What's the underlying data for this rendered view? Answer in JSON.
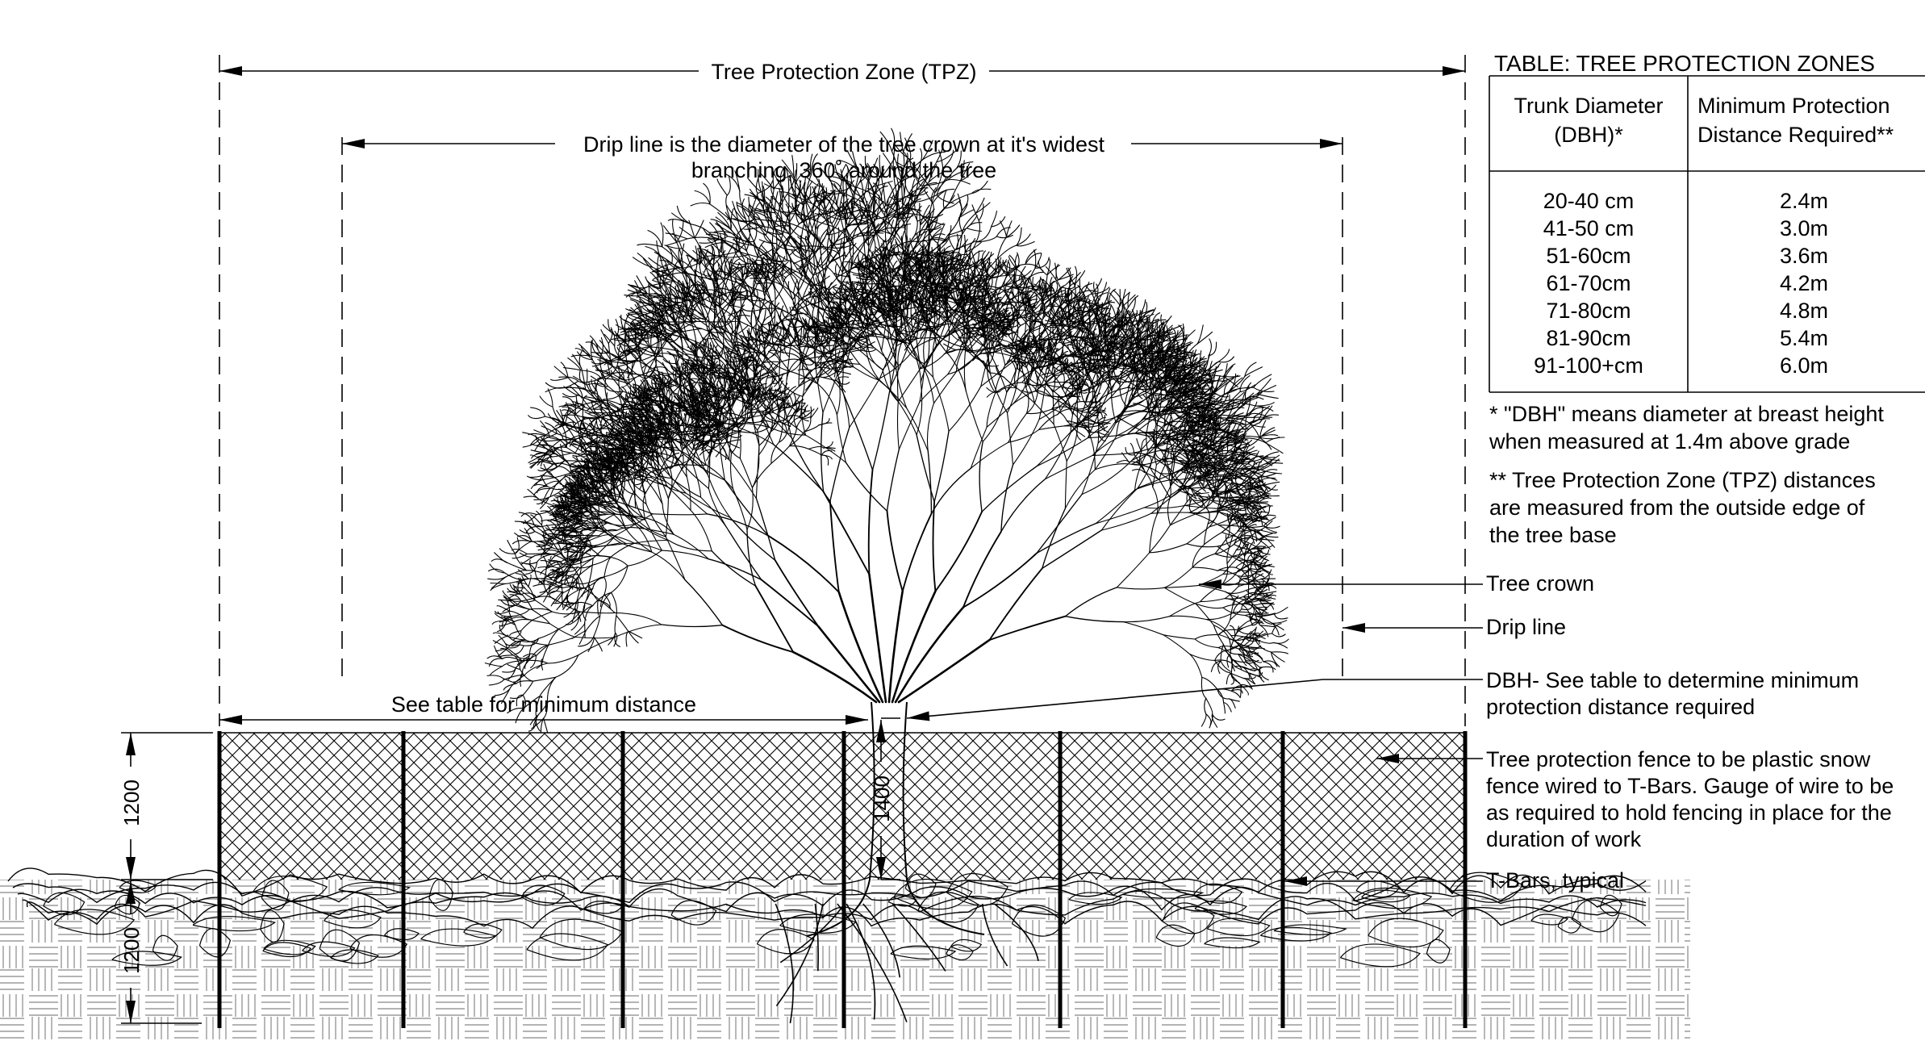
{
  "dimensions": {
    "tpz_label": "Tree Protection Zone (TPZ)",
    "drip_line_label_line1": "Drip line is the diameter of the tree crown at it's widest",
    "drip_line_label_line2": "branching, 360˚ around the tree",
    "min_distance_label": "See table for minimum distance",
    "fence_height": "1200",
    "dbh_height": "1400",
    "root_depth": "1200"
  },
  "callouts": {
    "tree_crown": "Tree crown",
    "drip_line": "Drip line",
    "dbh_line1": "DBH- See table to determine minimum",
    "dbh_line2": "protection distance required",
    "fence_line1": "Tree protection fence to be plastic snow",
    "fence_line2": "fence wired to T-Bars. Gauge of wire to be",
    "fence_line3": "as required to hold fencing in place for the",
    "fence_line4": "duration of work",
    "tbars": "T-Bars, typical"
  },
  "table": {
    "title": "TABLE: TREE PROTECTION ZONES",
    "headers": {
      "col1_line1": "Trunk Diameter",
      "col1_line2": "(DBH)*",
      "col2_line1": "Minimum Protection",
      "col2_line2": "Distance Required**"
    },
    "rows": [
      {
        "dbh": "20-40 cm",
        "distance": "2.4m"
      },
      {
        "dbh": "41-50 cm",
        "distance": "3.0m"
      },
      {
        "dbh": "51-60cm",
        "distance": "3.6m"
      },
      {
        "dbh": "61-70cm",
        "distance": "4.2m"
      },
      {
        "dbh": "71-80cm",
        "distance": "4.8m"
      },
      {
        "dbh": "81-90cm",
        "distance": "5.4m"
      },
      {
        "dbh": "91-100+cm",
        "distance": "6.0m"
      }
    ]
  },
  "notes": {
    "note1_line1": "* \"DBH\" means diameter at breast height",
    "note1_line2": "when measured at 1.4m above grade",
    "note2_line1": "** Tree Protection Zone (TPZ) distances",
    "note2_line2": "are measured from the outside edge of",
    "note2_line3": "the tree base"
  }
}
